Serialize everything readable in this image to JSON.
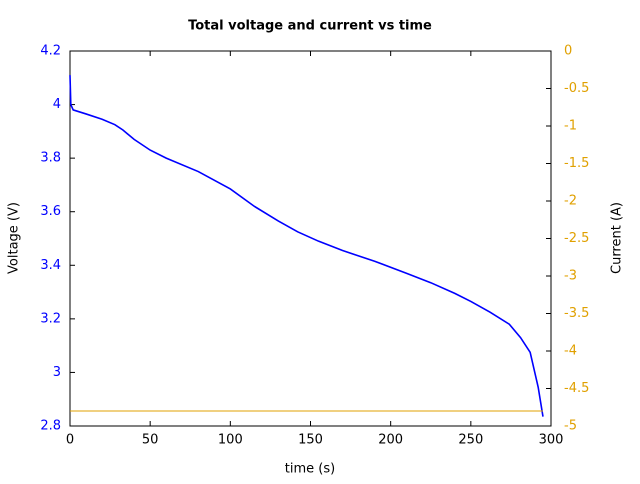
{
  "chart_data": {
    "type": "line",
    "title": "Total voltage and current vs time",
    "xlabel": "time (s)",
    "ylabel": "Voltage (V)",
    "y2label": "Current (A)",
    "xlim": [
      0,
      300
    ],
    "xticks": [
      0,
      50,
      100,
      150,
      200,
      250,
      300
    ],
    "ylim": [
      2.8,
      4.2
    ],
    "yticks": [
      2.8,
      3,
      3.2,
      3.4,
      3.6,
      3.8,
      4,
      4.2
    ],
    "y2lim": [
      -5,
      0
    ],
    "y2ticks": [
      -5,
      -4.5,
      -4,
      -3.5,
      -3,
      -2.5,
      -2,
      -1.5,
      -1,
      -0.5,
      0
    ],
    "grid": false,
    "series": [
      {
        "name": "Voltage",
        "color": "#0000ff",
        "x": [
          0,
          0.5,
          2,
          10,
          20,
          28,
          33,
          40,
          50,
          60,
          80,
          100,
          115,
          130,
          142,
          155,
          170,
          190,
          210,
          225,
          240,
          250,
          262,
          274,
          281,
          287,
          292,
          295
        ],
        "values": [
          4.11,
          4.0,
          3.98,
          3.965,
          3.945,
          3.925,
          3.905,
          3.87,
          3.83,
          3.8,
          3.75,
          3.685,
          3.62,
          3.565,
          3.525,
          3.49,
          3.455,
          3.415,
          3.37,
          3.335,
          3.295,
          3.265,
          3.225,
          3.18,
          3.13,
          3.075,
          2.945,
          2.835
        ]
      },
      {
        "name": "Current",
        "color": "#e0a000",
        "axis": "y2",
        "x": [
          0,
          295
        ],
        "values": [
          -4.8,
          -4.8
        ]
      }
    ]
  }
}
